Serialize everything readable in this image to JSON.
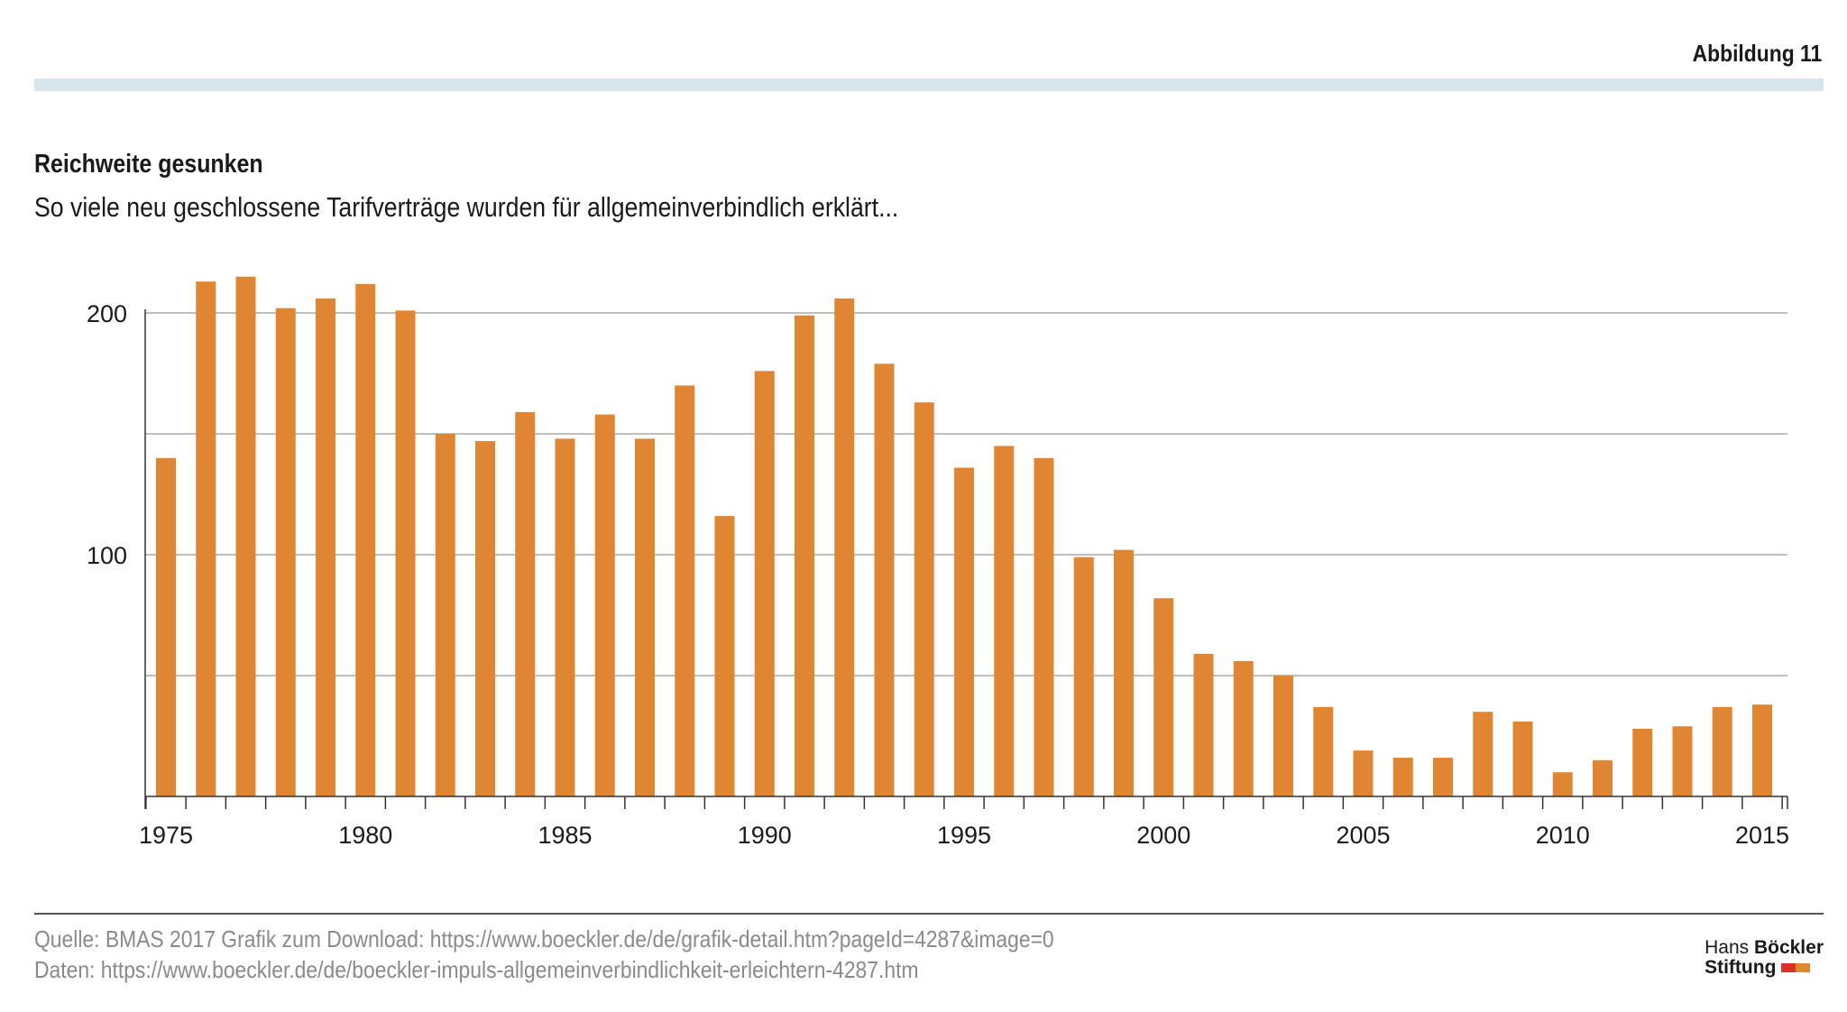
{
  "figure_label": "Abbildung 11",
  "title": "Reichweite gesunken",
  "subtitle": "So viele neu geschlossene Tarifverträge wurden für allgemeinverbindlich erklärt...",
  "source_line1": "Quelle: BMAS 2017  Grafik zum Download: https://www.boeckler.de/de/grafik-detail.htm?pageId=4287&image=0",
  "source_line2": "Daten: https://www.boeckler.de/de/boeckler-impuls-allgemeinverbindlichkeit-erleichtern-4287.htm",
  "logo": {
    "line1_light": "Hans ",
    "line1_bold": "Böckler",
    "line2": "Stiftung"
  },
  "colors": {
    "bar": "#e08632",
    "band": "#d6e6eb",
    "grid": "#aaaaaa",
    "logo_red": "#d9302c",
    "logo_orange": "#e08632"
  },
  "chart_data": {
    "type": "bar",
    "title": "Reichweite gesunken",
    "xlabel": "",
    "ylabel": "",
    "ylim": [
      0,
      200
    ],
    "gridlines": [
      50,
      100,
      150,
      200
    ],
    "y_tick_labels": [
      100,
      200
    ],
    "x_tick_labels": [
      1975,
      1980,
      1985,
      1990,
      1995,
      2000,
      2005,
      2010,
      2015
    ],
    "categories": [
      1975,
      1976,
      1977,
      1978,
      1979,
      1980,
      1981,
      1982,
      1983,
      1984,
      1985,
      1986,
      1987,
      1988,
      1989,
      1990,
      1991,
      1992,
      1993,
      1994,
      1995,
      1996,
      1997,
      1998,
      1999,
      2000,
      2001,
      2002,
      2003,
      2004,
      2005,
      2006,
      2007,
      2008,
      2009,
      2010,
      2011,
      2012,
      2013,
      2014,
      2015
    ],
    "values": [
      140,
      213,
      215,
      202,
      206,
      212,
      201,
      150,
      147,
      159,
      148,
      158,
      148,
      170,
      116,
      176,
      199,
      206,
      179,
      163,
      136,
      145,
      140,
      99,
      102,
      82,
      59,
      56,
      50,
      37,
      19,
      16,
      16,
      35,
      31,
      10,
      15,
      28,
      29,
      37,
      38
    ]
  }
}
